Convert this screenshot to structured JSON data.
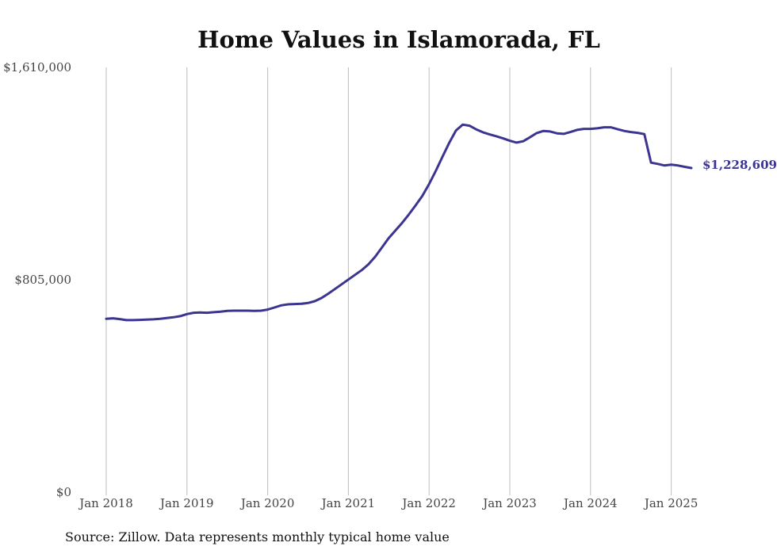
{
  "chart_data": {
    "type": "line",
    "title": "Home Values in Islamorada, FL",
    "xlabel": "",
    "ylabel": "",
    "ylim": [
      0,
      1610000
    ],
    "y_ticks": [
      {
        "value": 0,
        "label": "$0"
      },
      {
        "value": 805000,
        "label": "$805,000"
      },
      {
        "value": 1610000,
        "label": "$1,610,000"
      }
    ],
    "x_ticks": [
      {
        "date": "2018-01",
        "label": "Jan 2018"
      },
      {
        "date": "2019-01",
        "label": "Jan 2019"
      },
      {
        "date": "2020-01",
        "label": "Jan 2020"
      },
      {
        "date": "2021-01",
        "label": "Jan 2021"
      },
      {
        "date": "2022-01",
        "label": "Jan 2022"
      },
      {
        "date": "2023-01",
        "label": "Jan 2023"
      },
      {
        "date": "2024-01",
        "label": "Jan 2024"
      },
      {
        "date": "2025-01",
        "label": "Jan 2025"
      }
    ],
    "grid": "vertical",
    "line_color": "#3b3591",
    "end_label": "$1,228,609",
    "series": [
      {
        "x": [
          "2018-01",
          "2018-02",
          "2018-03",
          "2018-04",
          "2018-05",
          "2018-06",
          "2018-07",
          "2018-08",
          "2018-09",
          "2018-10",
          "2018-11",
          "2018-12",
          "2019-01",
          "2019-02",
          "2019-03",
          "2019-04",
          "2019-05",
          "2019-06",
          "2019-07",
          "2019-08",
          "2019-09",
          "2019-10",
          "2019-11",
          "2019-12",
          "2020-01",
          "2020-02",
          "2020-03",
          "2020-04",
          "2020-05",
          "2020-06",
          "2020-07",
          "2020-08",
          "2020-09",
          "2020-10",
          "2020-11",
          "2020-12",
          "2021-01",
          "2021-02",
          "2021-03",
          "2021-04",
          "2021-05",
          "2021-06",
          "2021-07",
          "2021-08",
          "2021-09",
          "2021-10",
          "2021-11",
          "2021-12",
          "2022-01",
          "2022-02",
          "2022-03",
          "2022-04",
          "2022-05",
          "2022-06",
          "2022-07",
          "2022-08",
          "2022-09",
          "2022-10",
          "2022-11",
          "2022-12",
          "2023-01",
          "2023-02",
          "2023-03",
          "2023-04",
          "2023-05",
          "2023-06",
          "2023-07",
          "2023-08",
          "2023-09",
          "2023-10",
          "2023-11",
          "2023-12",
          "2024-01",
          "2024-02",
          "2024-03",
          "2024-04",
          "2024-05",
          "2024-06",
          "2024-07",
          "2024-08",
          "2024-09",
          "2024-10",
          "2024-11",
          "2024-12",
          "2025-01",
          "2025-02",
          "2025-03",
          "2025-04"
        ],
        "values": [
          657000,
          659000,
          656000,
          652000,
          652000,
          653000,
          654000,
          655000,
          657000,
          660000,
          663000,
          667000,
          675000,
          680000,
          681000,
          680000,
          682000,
          684000,
          687000,
          688000,
          688000,
          688000,
          687000,
          688000,
          692000,
          700000,
          708000,
          712000,
          713000,
          714000,
          717000,
          724000,
          736000,
          752000,
          770000,
          788000,
          806000,
          824000,
          842000,
          864000,
          893000,
          928000,
          963000,
          992000,
          1021000,
          1053000,
          1087000,
          1123000,
          1168000,
          1218000,
          1272000,
          1324000,
          1371000,
          1393000,
          1389000,
          1375000,
          1364000,
          1356000,
          1349000,
          1341000,
          1332000,
          1325000,
          1330000,
          1345000,
          1361000,
          1369000,
          1367000,
          1360000,
          1358000,
          1365000,
          1373000,
          1377000,
          1377000,
          1379000,
          1383000,
          1383000,
          1376000,
          1369000,
          1365000,
          1362000,
          1357000,
          1249000,
          1244000,
          1238000,
          1241000,
          1238000,
          1233000,
          1228609
        ]
      }
    ]
  },
  "footer": {
    "source": "Source: Zillow. Data represents monthly typical home value"
  }
}
